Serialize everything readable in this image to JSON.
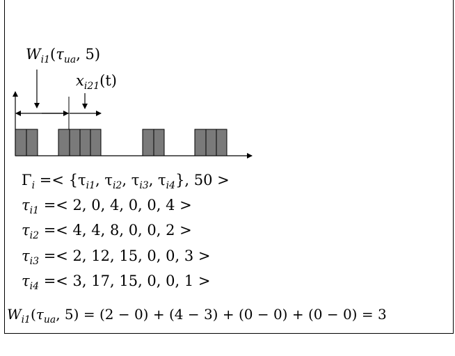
{
  "diagram": {
    "label_w": {
      "base": "W",
      "sub": "i1",
      "arg_pre": "(",
      "tau": "τ",
      "tau_sub": "ua",
      "arg_post": ", 5)"
    },
    "label_x": {
      "base": "x",
      "sub": "i21",
      "arg": "(t)"
    },
    "task_set": {
      "gamma": "Γ",
      "gamma_sub": "i",
      "rhs": " =< {τ",
      "rhs_items": [
        "i1",
        "i2",
        "i3",
        "i4"
      ],
      "tail": "}, 50 >"
    },
    "tasks": [
      {
        "sym": "τ",
        "sub": "i1",
        "params": " =< 2, 0, 4, 0, 0, 4 >"
      },
      {
        "sym": "τ",
        "sub": "i2",
        "params": " =< 4, 4, 8, 0, 0, 2 >"
      },
      {
        "sym": "τ",
        "sub": "i3",
        "params": " =< 2, 12, 15, 0, 0, 3 >"
      },
      {
        "sym": "τ",
        "sub": "i4",
        "params": " =< 3, 17, 15, 0, 0, 1 >"
      }
    ],
    "equation": {
      "lhs_base": "W",
      "lhs_sub": "i1",
      "lhs_tau": "τ",
      "lhs_tau_sub": "ua",
      "lhs_tail": ", 5)",
      "rhs": " = (2 − 0) + (4 − 3) + (0 − 0) + (0 − 0) = 3"
    },
    "colors": {
      "block_fill": "#7a7a7a",
      "stroke": "#000000"
    }
  }
}
